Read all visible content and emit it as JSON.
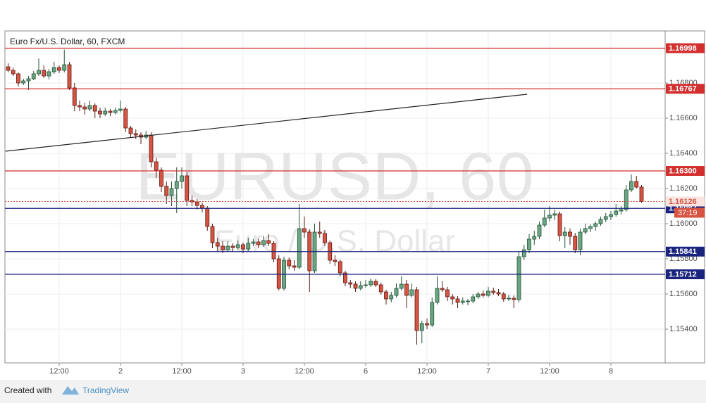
{
  "chart_data": {
    "type": "candlestick",
    "title": "Euro Fx/U.S. Dollar, 60, FXCM",
    "watermark": "EURUSD, 60",
    "watermark_subtitle": "Euro / U.S. Dollar",
    "footer": "Created with",
    "brand": "TradingView",
    "up_color": "#6ba583",
    "down_color": "#d75442",
    "grid": true,
    "ylim": [
      1.15208,
      1.17096
    ],
    "yticks": [
      {
        "value": 1.154,
        "label": "1.15400"
      },
      {
        "value": 1.156,
        "label": "1.15600"
      },
      {
        "value": 1.158,
        "label": "1.15800"
      },
      {
        "value": 1.16,
        "label": "1.16000"
      },
      {
        "value": 1.162,
        "label": "1.16200"
      },
      {
        "value": 1.164,
        "label": "1.16400"
      },
      {
        "value": 1.166,
        "label": "1.16600"
      },
      {
        "value": 1.168,
        "label": "1.16800"
      }
    ],
    "categories": [
      null,
      null,
      null,
      null,
      null,
      null,
      null,
      null,
      null,
      null,
      "12:00",
      null,
      null,
      null,
      null,
      null,
      null,
      null,
      null,
      null,
      null,
      null,
      "2",
      null,
      null,
      null,
      null,
      null,
      null,
      null,
      null,
      null,
      null,
      null,
      "12:00",
      null,
      null,
      null,
      null,
      null,
      null,
      null,
      null,
      null,
      null,
      null,
      "3",
      null,
      null,
      null,
      null,
      null,
      null,
      null,
      null,
      null,
      null,
      null,
      "12:00",
      null,
      null,
      null,
      null,
      null,
      null,
      null,
      null,
      null,
      null,
      null,
      "6",
      null,
      null,
      null,
      null,
      null,
      null,
      null,
      null,
      null,
      null,
      null,
      "12:00",
      null,
      null,
      null,
      null,
      null,
      null,
      null,
      null,
      null,
      null,
      null,
      "7",
      null,
      null,
      null,
      null,
      null,
      null,
      null,
      null,
      null,
      null,
      null,
      "12:00",
      null,
      null,
      null,
      null,
      null,
      null,
      null,
      null,
      null,
      null,
      null,
      "8",
      null,
      null,
      null,
      null,
      null,
      null
    ],
    "ohlc": [
      [
        1.16892,
        1.16912,
        1.1686,
        1.16872
      ],
      [
        1.16872,
        1.16888,
        1.1684,
        1.16852
      ],
      [
        1.16852,
        1.1686,
        1.1678,
        1.168
      ],
      [
        1.168,
        1.16824,
        1.16788,
        1.16812
      ],
      [
        1.16812,
        1.1684,
        1.1676,
        1.16824
      ],
      [
        1.16824,
        1.16868,
        1.16816,
        1.16852
      ],
      [
        1.16852,
        1.1694,
        1.1684,
        1.16872
      ],
      [
        1.16872,
        1.169,
        1.16828,
        1.1684
      ],
      [
        1.1684,
        1.1688,
        1.1682,
        1.16864
      ],
      [
        1.16864,
        1.1692,
        1.16852,
        1.16888
      ],
      [
        1.16888,
        1.169,
        1.16856,
        1.16872
      ],
      [
        1.16872,
        1.1699,
        1.1686,
        1.16904
      ],
      [
        1.16904,
        1.1692,
        1.1676,
        1.16772
      ],
      [
        1.16772,
        1.168,
        1.1664,
        1.16672
      ],
      [
        1.16672,
        1.167,
        1.1664,
        1.16664
      ],
      [
        1.16664,
        1.16688,
        1.1662,
        1.16652
      ],
      [
        1.16652,
        1.167,
        1.1664,
        1.16672
      ],
      [
        1.16672,
        1.16684,
        1.166,
        1.1664
      ],
      [
        1.1664,
        1.1666,
        1.166,
        1.16624
      ],
      [
        1.16624,
        1.1666,
        1.16612,
        1.1664
      ],
      [
        1.1664,
        1.16652,
        1.16612,
        1.16632
      ],
      [
        1.16632,
        1.1666,
        1.1662,
        1.16644
      ],
      [
        1.16644,
        1.167,
        1.16632,
        1.16652
      ],
      [
        1.16652,
        1.16664,
        1.1652,
        1.16544
      ],
      [
        1.16544,
        1.16556,
        1.16492,
        1.16512
      ],
      [
        1.16512,
        1.16536,
        1.1648,
        1.16504
      ],
      [
        1.16504,
        1.1652,
        1.16452,
        1.16492
      ],
      [
        1.16492,
        1.16528,
        1.1648,
        1.16504
      ],
      [
        1.16504,
        1.1652,
        1.1632,
        1.16352
      ],
      [
        1.16352,
        1.16372,
        1.1626,
        1.16304
      ],
      [
        1.16304,
        1.1632,
        1.1618,
        1.16212
      ],
      [
        1.16212,
        1.1624,
        1.16112,
        1.1616
      ],
      [
        1.1616,
        1.1624,
        1.161,
        1.162
      ],
      [
        1.162,
        1.1632,
        1.1606,
        1.1624
      ],
      [
        1.1624,
        1.1632,
        1.162,
        1.16272
      ],
      [
        1.16272,
        1.16292,
        1.161,
        1.16132
      ],
      [
        1.16132,
        1.1616,
        1.161,
        1.16124
      ],
      [
        1.16124,
        1.1614,
        1.1608,
        1.16104
      ],
      [
        1.16104,
        1.1612,
        1.16064,
        1.16088
      ],
      [
        1.16088,
        1.161,
        1.1596,
        1.15984
      ],
      [
        1.15984,
        1.16,
        1.1586,
        1.15892
      ],
      [
        1.15892,
        1.1592,
        1.1584,
        1.15872
      ],
      [
        1.15872,
        1.159,
        1.15832,
        1.15852
      ],
      [
        1.15852,
        1.159,
        1.1584,
        1.15872
      ],
      [
        1.15872,
        1.15888,
        1.1584,
        1.15864
      ],
      [
        1.15864,
        1.15904,
        1.15852,
        1.1588
      ],
      [
        1.1588,
        1.15892,
        1.15832,
        1.15856
      ],
      [
        1.15856,
        1.1592,
        1.15844,
        1.15888
      ],
      [
        1.15888,
        1.15912,
        1.15872,
        1.15896
      ],
      [
        1.15896,
        1.15916,
        1.1586,
        1.1588
      ],
      [
        1.1588,
        1.15932,
        1.15868,
        1.15904
      ],
      [
        1.15904,
        1.1594,
        1.15872,
        1.15888
      ],
      [
        1.15888,
        1.159,
        1.1578,
        1.158
      ],
      [
        1.158,
        1.1582,
        1.1562,
        1.15632
      ],
      [
        1.15632,
        1.15812,
        1.1562,
        1.15792
      ],
      [
        1.15792,
        1.15808,
        1.1574,
        1.1576
      ],
      [
        1.1576,
        1.15792,
        1.15732,
        1.15752
      ],
      [
        1.15752,
        1.16112,
        1.1574,
        1.15972
      ],
      [
        1.15972,
        1.1604,
        1.1592,
        1.15952
      ],
      [
        1.15952,
        1.15968,
        1.15612,
        1.15732
      ],
      [
        1.15732,
        1.16,
        1.1572,
        1.15952
      ],
      [
        1.15952,
        1.16012,
        1.1592,
        1.15944
      ],
      [
        1.15944,
        1.15964,
        1.15872,
        1.15892
      ],
      [
        1.15892,
        1.15904,
        1.15772,
        1.15792
      ],
      [
        1.15792,
        1.1582,
        1.1576,
        1.15784
      ],
      [
        1.15784,
        1.15796,
        1.157,
        1.1572
      ],
      [
        1.1572,
        1.15732,
        1.15644,
        1.15664
      ],
      [
        1.15664,
        1.1568,
        1.15632,
        1.15656
      ],
      [
        1.15656,
        1.15672,
        1.15612,
        1.15632
      ],
      [
        1.15632,
        1.15672,
        1.1562,
        1.15648
      ],
      [
        1.15648,
        1.1568,
        1.15636,
        1.15652
      ],
      [
        1.15652,
        1.15688,
        1.1564,
        1.15672
      ],
      [
        1.15672,
        1.15684,
        1.1564,
        1.15652
      ],
      [
        1.15652,
        1.15664,
        1.15596,
        1.15612
      ],
      [
        1.15612,
        1.15624,
        1.1554,
        1.15572
      ],
      [
        1.15572,
        1.15612,
        1.15552,
        1.15592
      ],
      [
        1.15592,
        1.1566,
        1.1558,
        1.15632
      ],
      [
        1.15632,
        1.157,
        1.1562,
        1.15656
      ],
      [
        1.15656,
        1.1568,
        1.1552,
        1.15592
      ],
      [
        1.15592,
        1.1566,
        1.1558,
        1.15624
      ],
      [
        1.15624,
        1.1564,
        1.15312,
        1.15392
      ],
      [
        1.15392,
        1.15448,
        1.1532,
        1.15432
      ],
      [
        1.15432,
        1.1546,
        1.154,
        1.15424
      ],
      [
        1.15424,
        1.1558,
        1.15412,
        1.15552
      ],
      [
        1.15552,
        1.157,
        1.1554,
        1.15632
      ],
      [
        1.15632,
        1.15672,
        1.15612,
        1.15624
      ],
      [
        1.15624,
        1.1564,
        1.1556,
        1.15584
      ],
      [
        1.15584,
        1.156,
        1.1554,
        1.15572
      ],
      [
        1.15572,
        1.15588,
        1.1552,
        1.15552
      ],
      [
        1.15552,
        1.1558,
        1.1554,
        1.1556
      ],
      [
        1.1556,
        1.15572,
        1.15536,
        1.1556
      ],
      [
        1.1556,
        1.156,
        1.15548,
        1.15584
      ],
      [
        1.15584,
        1.15612,
        1.15572,
        1.156
      ],
      [
        1.156,
        1.1562,
        1.1558,
        1.15592
      ],
      [
        1.15592,
        1.1564,
        1.1558,
        1.15616
      ],
      [
        1.15616,
        1.15636,
        1.15596,
        1.15608
      ],
      [
        1.15608,
        1.15628,
        1.15588,
        1.156
      ],
      [
        1.156,
        1.15612,
        1.15556,
        1.15572
      ],
      [
        1.15572,
        1.15596,
        1.1556,
        1.15576
      ],
      [
        1.15576,
        1.15592,
        1.1552,
        1.15568
      ],
      [
        1.15568,
        1.1584,
        1.15552,
        1.15812
      ],
      [
        1.15812,
        1.1588,
        1.15792,
        1.15852
      ],
      [
        1.15852,
        1.1594,
        1.15832,
        1.15912
      ],
      [
        1.15912,
        1.1596,
        1.1588,
        1.15928
      ],
      [
        1.15928,
        1.16012,
        1.15912,
        1.15992
      ],
      [
        1.15992,
        1.1608,
        1.1598,
        1.16032
      ],
      [
        1.16032,
        1.161,
        1.16012,
        1.16048
      ],
      [
        1.16048,
        1.1608,
        1.1602,
        1.16056
      ],
      [
        1.16056,
        1.16068,
        1.159,
        1.15932
      ],
      [
        1.15932,
        1.1598,
        1.1586,
        1.15952
      ],
      [
        1.15952,
        1.15972,
        1.1588,
        1.15928
      ],
      [
        1.15928,
        1.15948,
        1.15832,
        1.15852
      ],
      [
        1.15852,
        1.15972,
        1.1582,
        1.15952
      ],
      [
        1.15952,
        1.16,
        1.1594,
        1.15972
      ],
      [
        1.15972,
        1.15996,
        1.15952,
        1.15984
      ],
      [
        1.15984,
        1.16012,
        1.1596,
        1.16
      ],
      [
        1.16,
        1.1604,
        1.15988,
        1.16024
      ],
      [
        1.16024,
        1.1606,
        1.16008,
        1.1604
      ],
      [
        1.1604,
        1.16072,
        1.1602,
        1.16052
      ],
      [
        1.16052,
        1.16112,
        1.1604,
        1.16072
      ],
      [
        1.16072,
        1.161,
        1.16052,
        1.1608
      ],
      [
        1.1608,
        1.1622,
        1.16068,
        1.16192
      ],
      [
        1.16192,
        1.1628,
        1.1618,
        1.1624
      ],
      [
        1.1624,
        1.16272,
        1.162,
        1.16208
      ],
      [
        1.16208,
        1.1622,
        1.1612,
        1.16126
      ]
    ],
    "levels": [
      {
        "value": 1.16998,
        "color": "#d32f2f"
      },
      {
        "value": 1.16767,
        "color": "#d32f2f"
      },
      {
        "value": 1.163,
        "label": "1.16300",
        "color": "#d32f2f"
      },
      {
        "value": 1.16087,
        "color": "#1a237e"
      },
      {
        "value": 1.15841,
        "color": "#1a237e"
      },
      {
        "value": 1.15712,
        "color": "#1a237e"
      }
    ],
    "current_price": {
      "value": 1.16126,
      "countdown": "37:19",
      "color": "#d75442"
    },
    "trendline": {
      "x": [
        -0.5,
        101.6
      ],
      "y": [
        1.16412,
        1.16736
      ],
      "color": "#222222"
    }
  }
}
